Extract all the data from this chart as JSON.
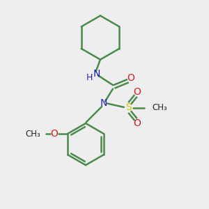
{
  "background_color": "#eeeeee",
  "bond_color": "#4a8a4a",
  "N_color": "#2222cc",
  "O_color": "#cc2222",
  "S_color": "#cccc00",
  "C_color": "#222222",
  "bond_width": 1.8,
  "figsize": [
    3.0,
    3.0
  ],
  "dpi": 100,
  "xlim": [
    0,
    10
  ],
  "ylim": [
    0,
    10
  ]
}
